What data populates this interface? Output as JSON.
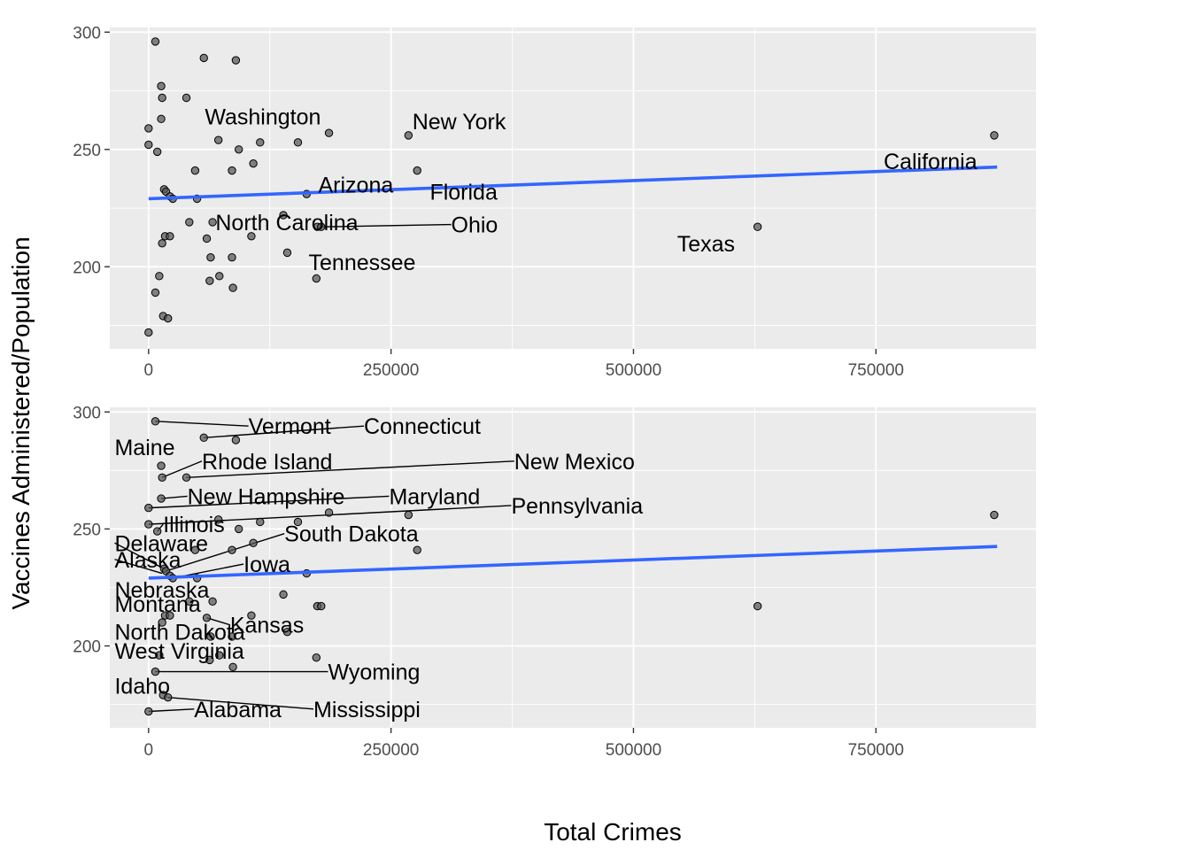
{
  "chart_data": {
    "type": "scatter",
    "xlabel": "Total Crimes",
    "ylabel": "Vaccines Administered/Population",
    "xlim": [
      -40000,
      915000
    ],
    "ylim": [
      165,
      302
    ],
    "x_ticks": [
      0,
      250000,
      500000,
      750000
    ],
    "x_tick_labels": [
      "0",
      "250000",
      "500000",
      "750000"
    ],
    "y_ticks": [
      200,
      250,
      300
    ],
    "y_tick_labels": [
      "200",
      "250",
      "300"
    ],
    "grid": true,
    "trend_line": {
      "color": "#3366FF",
      "x": [
        0,
        875000
      ],
      "y": [
        229,
        242.5
      ]
    },
    "points": [
      {
        "x": 7000,
        "y": 296
      },
      {
        "x": 57000,
        "y": 289
      },
      {
        "x": 90000,
        "y": 288
      },
      {
        "x": 13000,
        "y": 277
      },
      {
        "x": 14000,
        "y": 272
      },
      {
        "x": 39000,
        "y": 272
      },
      {
        "x": 13000,
        "y": 263
      },
      {
        "x": 0,
        "y": 259
      },
      {
        "x": 268000,
        "y": 256
      },
      {
        "x": 186000,
        "y": 257
      },
      {
        "x": 72000,
        "y": 254
      },
      {
        "x": 115000,
        "y": 253
      },
      {
        "x": 154000,
        "y": 253
      },
      {
        "x": 0,
        "y": 252
      },
      {
        "x": 93000,
        "y": 250
      },
      {
        "x": 9000,
        "y": 249
      },
      {
        "x": 108000,
        "y": 244
      },
      {
        "x": 48000,
        "y": 241
      },
      {
        "x": 86000,
        "y": 241
      },
      {
        "x": 277000,
        "y": 241
      },
      {
        "x": 16000,
        "y": 233
      },
      {
        "x": 18000,
        "y": 232
      },
      {
        "x": 22000,
        "y": 230
      },
      {
        "x": 25000,
        "y": 229
      },
      {
        "x": 50000,
        "y": 229
      },
      {
        "x": 163000,
        "y": 231
      },
      {
        "x": 139000,
        "y": 222
      },
      {
        "x": 42000,
        "y": 219
      },
      {
        "x": 66000,
        "y": 219
      },
      {
        "x": 174000,
        "y": 217
      },
      {
        "x": 178000,
        "y": 217
      },
      {
        "x": 14000,
        "y": 210
      },
      {
        "x": 17000,
        "y": 213
      },
      {
        "x": 22000,
        "y": 213
      },
      {
        "x": 60000,
        "y": 212
      },
      {
        "x": 106000,
        "y": 213
      },
      {
        "x": 143000,
        "y": 206
      },
      {
        "x": 64000,
        "y": 204
      },
      {
        "x": 86000,
        "y": 204
      },
      {
        "x": 11000,
        "y": 196
      },
      {
        "x": 63000,
        "y": 194
      },
      {
        "x": 73000,
        "y": 196
      },
      {
        "x": 87000,
        "y": 191
      },
      {
        "x": 173000,
        "y": 195
      },
      {
        "x": 7000,
        "y": 189
      },
      {
        "x": 15000,
        "y": 179
      },
      {
        "x": 20000,
        "y": 178
      },
      {
        "x": 0,
        "y": 172
      },
      {
        "x": 628000,
        "y": 217
      },
      {
        "x": 872000,
        "y": 256
      }
    ],
    "panels": [
      {
        "labels": [
          {
            "text": "Washington",
            "lx": 58000,
            "ly": 264,
            "px": 58000,
            "py": 264,
            "line": false
          },
          {
            "text": "New York",
            "lx": 272000,
            "ly": 262,
            "px": 268000,
            "py": 256,
            "line": false
          },
          {
            "text": "Arizona",
            "lx": 175000,
            "ly": 235,
            "px": 163000,
            "py": 231,
            "line": false
          },
          {
            "text": "Florida",
            "lx": 290000,
            "ly": 232,
            "px": 277000,
            "py": 241,
            "line": false
          },
          {
            "text": "California",
            "lx": 758000,
            "ly": 245,
            "px": 872000,
            "py": 256,
            "line": false
          },
          {
            "text": "North Carolina",
            "lx": 69000,
            "ly": 219,
            "px": 66000,
            "py": 219,
            "line": false
          },
          {
            "text": "Ohio",
            "lx": 312000,
            "ly": 218,
            "px": 178000,
            "py": 217,
            "line": true
          },
          {
            "text": "Texas",
            "lx": 545000,
            "ly": 210,
            "px": 628000,
            "py": 217,
            "line": false
          },
          {
            "text": "Tennessee",
            "lx": 165000,
            "ly": 202,
            "px": 173000,
            "py": 195,
            "line": false
          }
        ]
      },
      {
        "labels": [
          {
            "text": "Vermont",
            "lx": 103000,
            "ly": 294,
            "px": 7000,
            "py": 296,
            "line": true
          },
          {
            "text": "Connecticut",
            "lx": 222000,
            "ly": 294,
            "px": 57000,
            "py": 289,
            "line": true
          },
          {
            "text": "Maine",
            "lx": -35000,
            "ly": 285,
            "px": 13000,
            "py": 277,
            "line": false
          },
          {
            "text": "Rhode Island",
            "lx": 55000,
            "ly": 279,
            "px": 14000,
            "py": 272,
            "line": true
          },
          {
            "text": "New Mexico",
            "lx": 377000,
            "ly": 279,
            "px": 39000,
            "py": 272,
            "line": true
          },
          {
            "text": "New Hampshire",
            "lx": 40000,
            "ly": 264,
            "px": 13000,
            "py": 263,
            "line": true
          },
          {
            "text": "Maryland",
            "lx": 248000,
            "ly": 264,
            "px": 0,
            "py": 259,
            "line": true
          },
          {
            "text": "Pennsylvania",
            "lx": 374000,
            "ly": 260,
            "px": 0,
            "py": 252,
            "line": true
          },
          {
            "text": "Illinois",
            "lx": 15000,
            "ly": 252,
            "px": 9000,
            "py": 249,
            "line": true
          },
          {
            "text": "South Dakota",
            "lx": 140000,
            "ly": 248,
            "px": 18000,
            "py": 232,
            "line": true
          },
          {
            "text": "Delaware",
            "lx": -35000,
            "ly": 244,
            "px": 16000,
            "py": 233,
            "line": true
          },
          {
            "text": "Alaska",
            "lx": -35000,
            "ly": 237,
            "px": 14000,
            "py": 231,
            "line": true
          },
          {
            "text": "Iowa",
            "lx": 98000,
            "ly": 235,
            "px": 25000,
            "py": 229,
            "line": true
          },
          {
            "text": "Nebraska",
            "lx": -35000,
            "ly": 224,
            "px": 22000,
            "py": 230,
            "line": false
          },
          {
            "text": "Montana",
            "lx": -35000,
            "ly": 218,
            "px": 17000,
            "py": 213,
            "line": false
          },
          {
            "text": "Kansas",
            "lx": 84000,
            "ly": 209,
            "px": 60000,
            "py": 212,
            "line": true
          },
          {
            "text": "North Dakota",
            "lx": -35000,
            "ly": 206,
            "px": 14000,
            "py": 210,
            "line": false
          },
          {
            "text": "West Virginia",
            "lx": -35000,
            "ly": 198,
            "px": 11000,
            "py": 196,
            "line": false
          },
          {
            "text": "Wyoming",
            "lx": 185000,
            "ly": 189,
            "px": 7000,
            "py": 189,
            "line": true
          },
          {
            "text": "Idaho",
            "lx": -35000,
            "ly": 183,
            "px": 15000,
            "py": 179,
            "line": false
          },
          {
            "text": "Alabama",
            "lx": 47000,
            "ly": 173,
            "px": 0,
            "py": 172,
            "line": true
          },
          {
            "text": "Mississippi",
            "lx": 170000,
            "ly": 173,
            "px": 20000,
            "py": 178,
            "line": true
          }
        ]
      }
    ]
  }
}
